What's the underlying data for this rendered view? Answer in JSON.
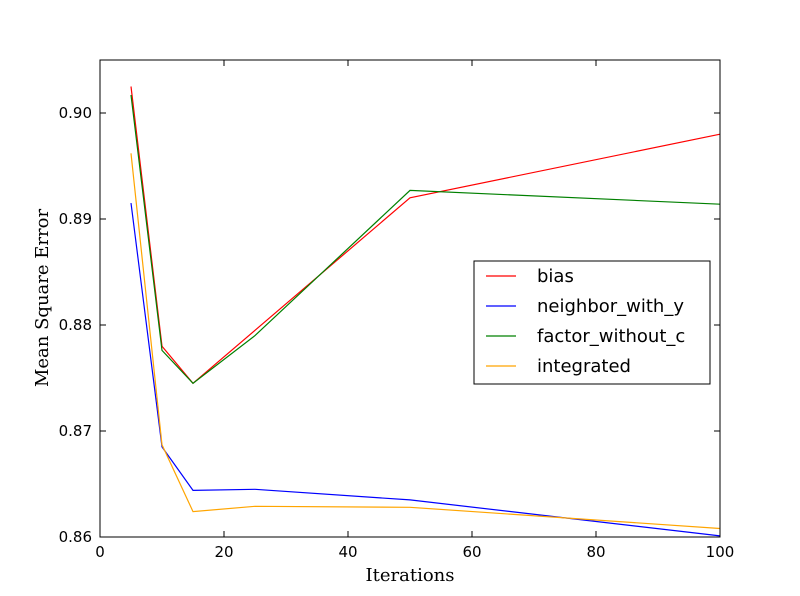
{
  "chart_data": {
    "type": "line",
    "title": "",
    "xlabel": "Iterations",
    "ylabel": "Mean Square Error",
    "xlim": [
      0,
      100
    ],
    "ylim": [
      0.86,
      0.905
    ],
    "xticks": [
      0,
      20,
      40,
      60,
      80,
      100
    ],
    "xtick_labels": [
      "0",
      "20",
      "40",
      "60",
      "80",
      "100"
    ],
    "yticks": [
      0.86,
      0.87,
      0.88,
      0.89,
      0.9
    ],
    "ytick_labels": [
      "0.86",
      "0.87",
      "0.88",
      "0.89",
      "0.90"
    ],
    "grid": false,
    "legend_position": "center-right",
    "x": [
      5,
      10,
      15,
      25,
      50,
      100
    ],
    "series": [
      {
        "name": "bias",
        "color": "#ff0000",
        "values": [
          0.9025,
          0.878,
          0.8745,
          0.8795,
          0.892,
          0.898
        ]
      },
      {
        "name": "neighbor_with_y",
        "color": "#0000ff",
        "values": [
          0.8915,
          0.8685,
          0.8644,
          0.8645,
          0.8635,
          0.8601
        ]
      },
      {
        "name": "factor_without_c",
        "color": "#008000",
        "values": [
          0.9017,
          0.8776,
          0.8745,
          0.879,
          0.8927,
          0.8914
        ]
      },
      {
        "name": "integrated",
        "color": "#ffa500",
        "values": [
          0.8962,
          0.8687,
          0.8624,
          0.8629,
          0.8628,
          0.8608
        ]
      }
    ]
  }
}
